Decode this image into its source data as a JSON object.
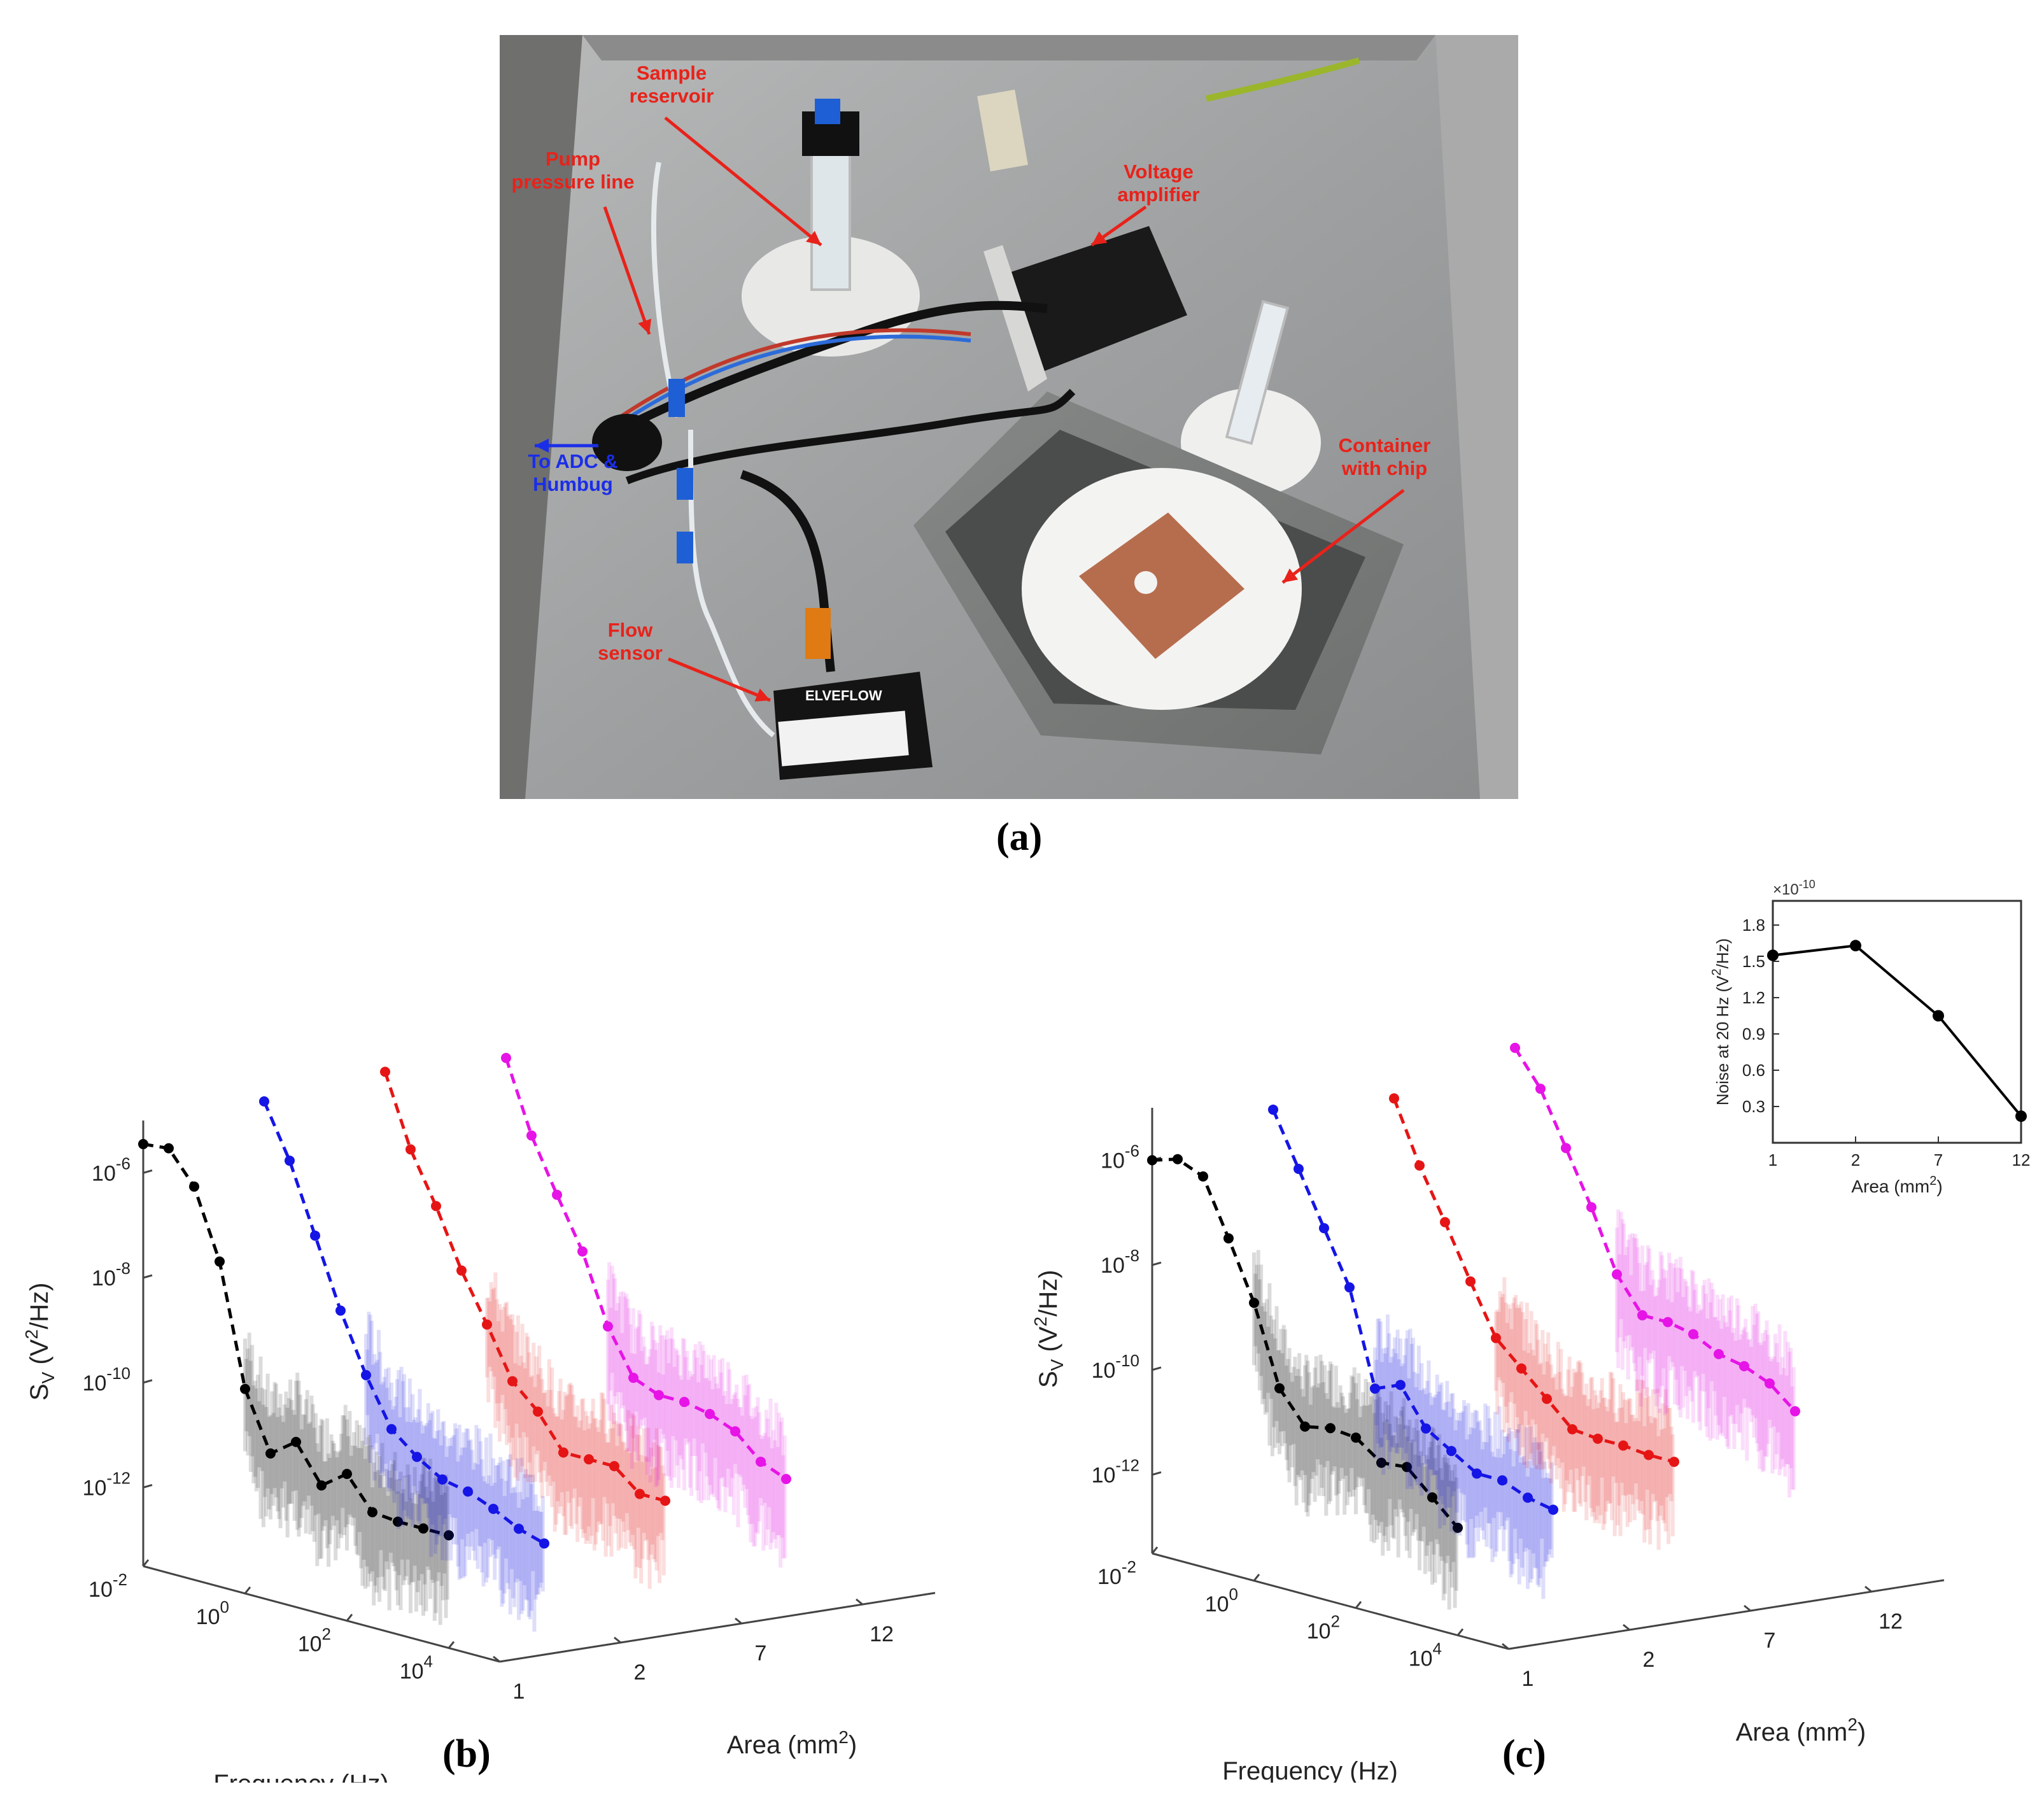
{
  "photo": {
    "annotations": [
      {
        "id": "sample-reservoir",
        "lines": [
          "Sample",
          "reservoir"
        ],
        "color": "#e8221a"
      },
      {
        "id": "pump-pressure-line",
        "lines": [
          "Pump",
          "pressure line"
        ],
        "color": "#e8221a"
      },
      {
        "id": "voltage-amplifier",
        "lines": [
          "Voltage",
          "amplifier"
        ],
        "color": "#e8221a"
      },
      {
        "id": "to-adc",
        "lines": [
          "To ADC &",
          "Humbug"
        ],
        "color": "#1a2ee8"
      },
      {
        "id": "container-chip",
        "lines": [
          "Container",
          "with chip"
        ],
        "color": "#e8221a"
      },
      {
        "id": "flow-sensor",
        "lines": [
          "Flow",
          "sensor"
        ],
        "color": "#e8221a"
      }
    ],
    "device_brand": "ELVEFLOW"
  },
  "labels": {
    "a": "(a)",
    "b": "(b)",
    "c": "(c)"
  },
  "chart_data": [
    {
      "id": "b",
      "type": "line",
      "zlabel": "S_V (V²/Hz)",
      "xlabel": "Frequency (Hz)",
      "ylabel": "Area (mm²)",
      "z_ticks": [
        "10-6",
        "10-8",
        "10-10",
        "10-12"
      ],
      "x_ticks": [
        "10-2",
        "100",
        "102",
        "104"
      ],
      "y_ticks": [
        "1",
        "2",
        "7",
        "12"
      ],
      "zlim_log10": [
        -13.5,
        -5
      ],
      "xlim_log10": [
        -2,
        5
      ],
      "series": [
        {
          "area": 1,
          "color": "#000000",
          "log_f": [
            -2.0,
            -1.5,
            -1.0,
            -0.5,
            0.0,
            0.5,
            1.0,
            1.5,
            2.0,
            2.5,
            3.0,
            3.5,
            4.0
          ],
          "log_s": [
            -5.45,
            -5.4,
            -6.0,
            -7.3,
            -9.6,
            -10.7,
            -10.35,
            -11.05,
            -10.7,
            -11.3,
            -11.35,
            -11.35,
            -11.35
          ]
        },
        {
          "area": 2,
          "color": "#1515e6",
          "log_f": [
            -2.0,
            -1.5,
            -1.0,
            -0.5,
            0.0,
            0.5,
            1.0,
            1.5,
            2.0,
            2.5,
            3.0,
            3.5
          ],
          "log_s": [
            -5.0,
            -6.0,
            -7.3,
            -8.6,
            -9.7,
            -10.6,
            -11.0,
            -11.3,
            -11.4,
            -11.6,
            -11.85,
            -12.0
          ]
        },
        {
          "area": 7,
          "color": "#e61515",
          "log_f": [
            -2.0,
            -1.5,
            -1.0,
            -0.5,
            0.0,
            0.5,
            1.0,
            1.5,
            2.0,
            2.5,
            3.0,
            3.5
          ],
          "log_s": [
            -4.8,
            -6.15,
            -7.1,
            -8.2,
            -9.1,
            -10.05,
            -10.5,
            -11.15,
            -11.15,
            -11.15,
            -11.55,
            -11.55
          ]
        },
        {
          "area": 12,
          "color": "#e614e6",
          "log_f": [
            -2.0,
            -1.5,
            -1.0,
            -0.5,
            0.0,
            0.5,
            1.0,
            1.5,
            2.0,
            2.5,
            3.0,
            3.5
          ],
          "log_s": [
            -4.9,
            -6.25,
            -7.25,
            -8.2,
            -9.5,
            -10.35,
            -10.55,
            -10.55,
            -10.65,
            -10.85,
            -11.3,
            -11.5
          ]
        }
      ]
    },
    {
      "id": "c",
      "type": "line",
      "zlabel": "S_V (V²/Hz)",
      "xlabel": "Frequency (Hz)",
      "ylabel": "Area (mm²)",
      "z_ticks": [
        "10-6",
        "10-8",
        "10-10",
        "10-12"
      ],
      "x_ticks": [
        "10-2",
        "100",
        "102",
        "104"
      ],
      "y_ticks": [
        "1",
        "2",
        "7",
        "12"
      ],
      "zlim_log10": [
        -13.5,
        -5
      ],
      "xlim_log10": [
        -2,
        5
      ],
      "series": [
        {
          "area": 1,
          "color": "#000000",
          "log_f": [
            -2.0,
            -1.5,
            -1.0,
            -0.5,
            0.0,
            0.5,
            1.0,
            1.5,
            2.0,
            2.5,
            3.0,
            3.5,
            4.0
          ],
          "log_s": [
            -6.0,
            -5.85,
            -6.05,
            -7.1,
            -8.2,
            -9.7,
            -10.3,
            -10.2,
            -10.25,
            -10.6,
            -10.55,
            -11.0,
            -11.45
          ]
        },
        {
          "area": 2,
          "color": "#1515e6",
          "log_f": [
            -2.0,
            -1.5,
            -1.0,
            -0.5,
            0.0,
            0.5,
            1.0,
            1.5,
            2.0,
            2.5,
            3.0,
            3.5
          ],
          "log_s": [
            -5.4,
            -6.4,
            -7.4,
            -8.4,
            -10.2,
            -10.0,
            -10.7,
            -11.0,
            -11.3,
            -11.3,
            -11.5,
            -11.6
          ]
        },
        {
          "area": 7,
          "color": "#e61515",
          "log_f": [
            -2.0,
            -1.5,
            -1.0,
            -0.5,
            0.0,
            0.5,
            1.0,
            1.5,
            2.0,
            2.5,
            3.0,
            3.5
          ],
          "log_s": [
            -5.55,
            -6.7,
            -7.65,
            -8.65,
            -9.6,
            -10.05,
            -10.5,
            -10.95,
            -11.0,
            -11.0,
            -11.05,
            -11.05
          ]
        },
        {
          "area": 12,
          "color": "#e614e6",
          "log_f": [
            -2.0,
            -1.5,
            -1.0,
            -0.5,
            0.0,
            0.5,
            1.0,
            1.5,
            2.0,
            2.5,
            3.0,
            3.5
          ],
          "log_s": [
            -4.95,
            -5.6,
            -6.6,
            -7.6,
            -8.75,
            -9.4,
            -9.4,
            -9.5,
            -9.75,
            -9.85,
            -10.05,
            -10.45
          ]
        }
      ]
    },
    {
      "id": "c-inset",
      "type": "line",
      "xlabel": "Area (mm²)",
      "ylabel": "Noise at 20 Hz (V²/Hz)",
      "exponent": "×10-10",
      "categories": [
        "1",
        "2",
        "7",
        "12"
      ],
      "values": [
        1.55,
        1.63,
        1.05,
        0.22
      ],
      "y_ticks": [
        "0.3",
        "0.6",
        "0.9",
        "1.2",
        "1.5",
        "1.8"
      ],
      "ylim": [
        0,
        2.0
      ],
      "color": "#000000"
    }
  ]
}
